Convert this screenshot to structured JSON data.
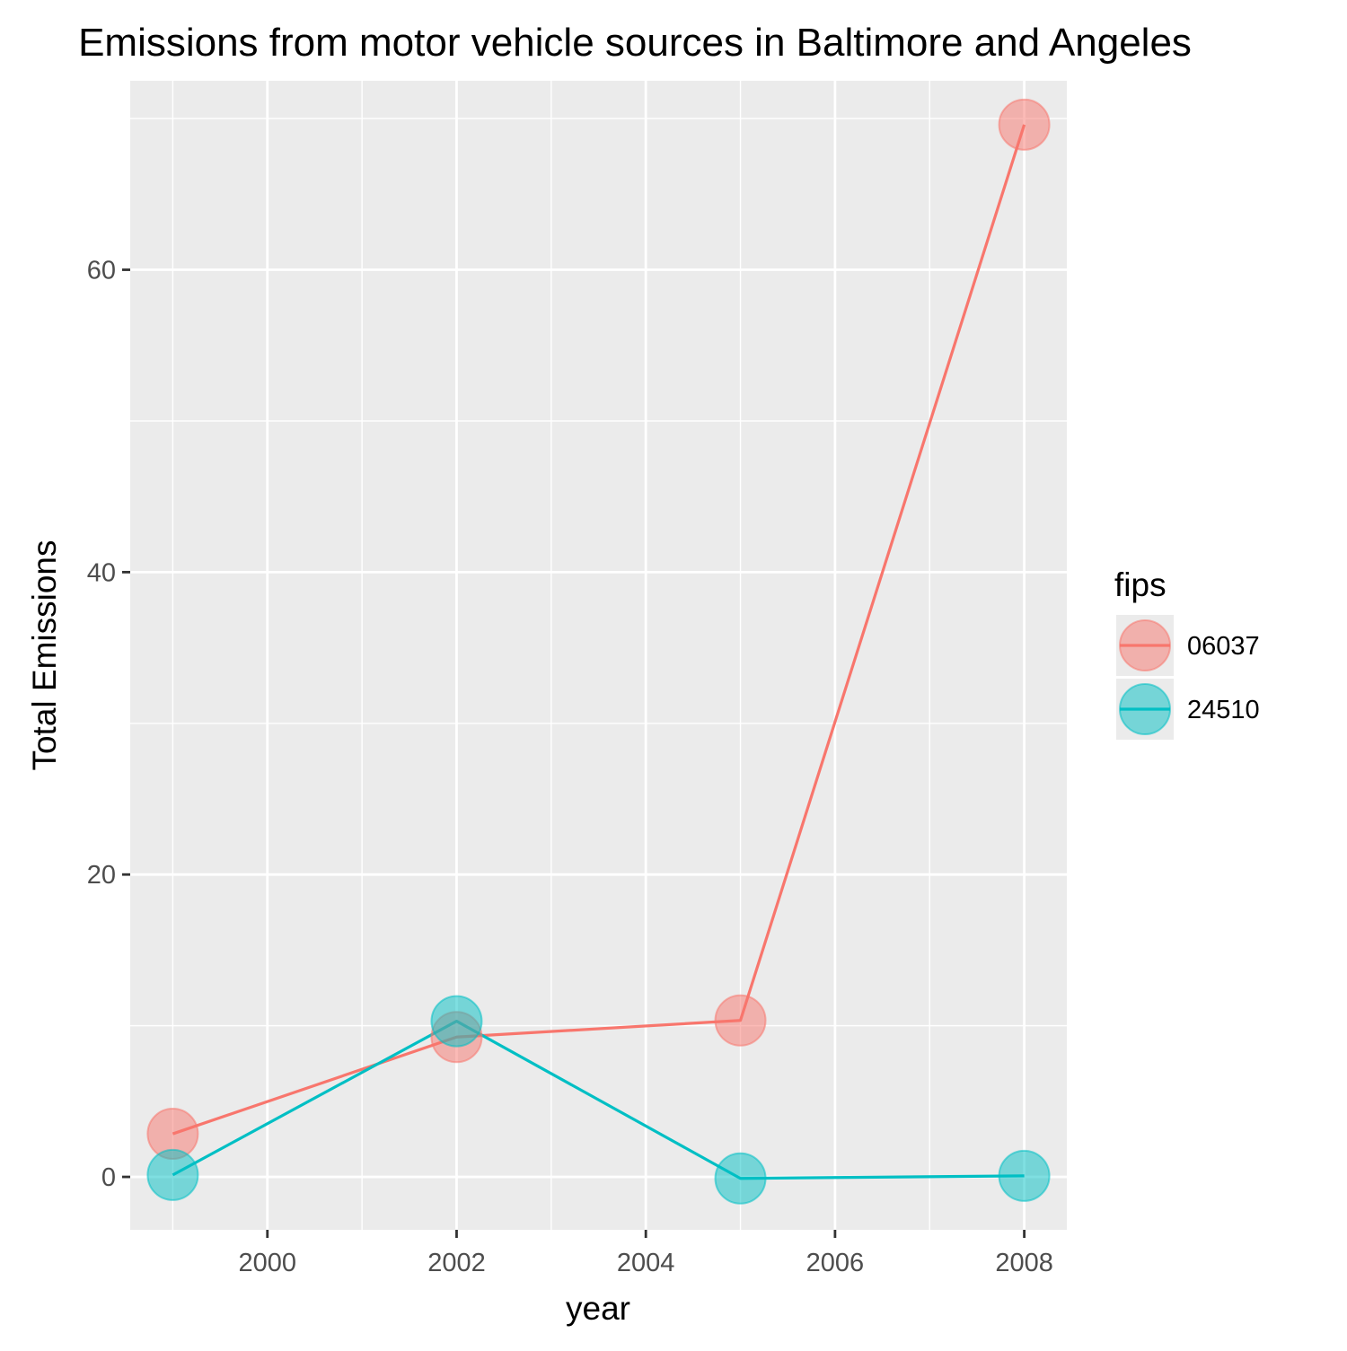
{
  "chart_data": {
    "type": "line",
    "title": "Emissions from motor vehicle sources in Baltimore and Angeles",
    "xlabel": "year",
    "ylabel": "Total Emissions",
    "xlim": [
      1998.55,
      2008.45
    ],
    "ylim": [
      -3.5,
      72.5
    ],
    "x_ticks": [
      2000,
      2002,
      2004,
      2006,
      2008
    ],
    "y_ticks": [
      0,
      20,
      40,
      60
    ],
    "grid": true,
    "legend": {
      "title": "fips",
      "position": "right"
    },
    "x": [
      1999,
      2002,
      2005,
      2008
    ],
    "series": [
      {
        "name": "06037",
        "color": "#F8766D",
        "values": [
          2.85,
          9.25,
          10.35,
          69.6
        ]
      },
      {
        "name": "24510",
        "color": "#00BFC4",
        "values": [
          0.13,
          10.3,
          -0.1,
          0.07
        ]
      }
    ]
  }
}
